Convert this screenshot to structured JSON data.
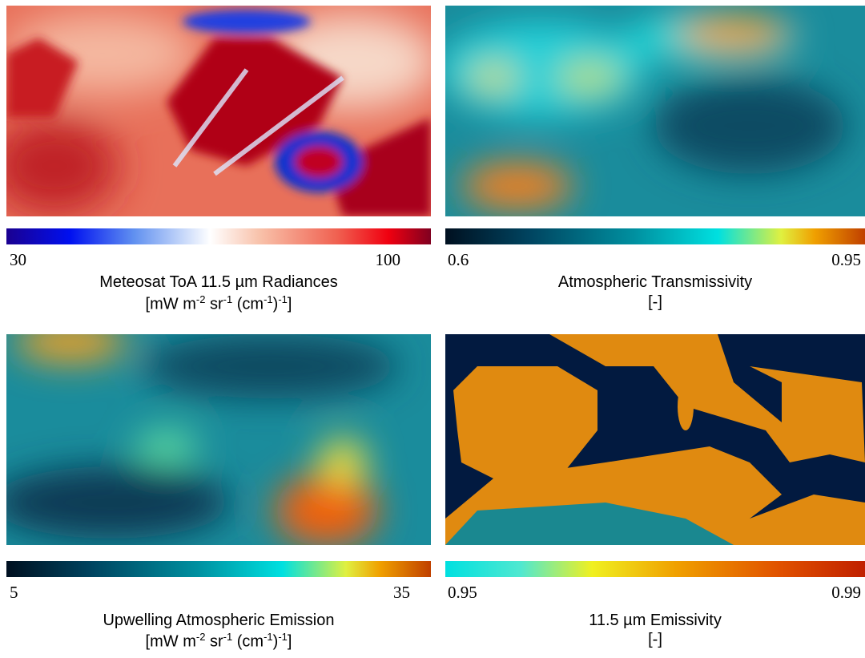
{
  "panels": [
    {
      "colorbar": {
        "min": "30",
        "max": "100"
      },
      "title": "Meteosat ToA 11.5 µm Radiances",
      "units": [
        {
          "text": "[mW m"
        },
        {
          "sup": "-2"
        },
        {
          "text": " sr"
        },
        {
          "sup": "-1"
        },
        {
          "text": " (cm"
        },
        {
          "sup": "-1"
        },
        {
          "text": ")"
        },
        {
          "sup": "-1"
        },
        {
          "text": "]"
        }
      ]
    },
    {
      "colorbar": {
        "min": "0.6",
        "max": "0.95"
      },
      "title": "Atmospheric Transmissivity",
      "units": [
        {
          "text": "[-]"
        }
      ]
    },
    {
      "colorbar": {
        "min": "5",
        "max": "35"
      },
      "title": "Upwelling Atmospheric Emission",
      "units": [
        {
          "text": "[mW m"
        },
        {
          "sup": "-2"
        },
        {
          "text": " sr"
        },
        {
          "sup": "-1"
        },
        {
          "text": " (cm"
        },
        {
          "sup": "-1"
        },
        {
          "text": ")"
        },
        {
          "sup": "-1"
        },
        {
          "text": "]"
        }
      ]
    },
    {
      "colorbar": {
        "min": "0.95",
        "max": "0.99"
      },
      "title": "11.5 µm Emissivity",
      "units": [
        {
          "text": "[-]"
        }
      ]
    }
  ]
}
